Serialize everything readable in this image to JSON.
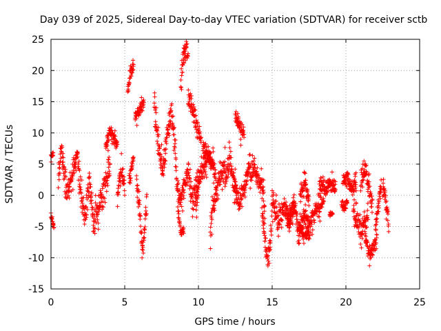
{
  "chart_data": {
    "type": "scatter",
    "title": "Day 039 of 2025, Sidereal Day-to-day VTEC variation (SDTVAR) for receiver sctb",
    "xlabel": "GPS time / hours",
    "ylabel": "SDTVAR / TECUs",
    "xlim": [
      0,
      25
    ],
    "ylim": [
      -15,
      25
    ],
    "x_ticks": [
      "0",
      "5",
      "10",
      "15",
      "20",
      "25"
    ],
    "y_ticks": [
      "-15",
      "-10",
      "-5",
      "0",
      "5",
      "10",
      "15",
      "20",
      "25"
    ],
    "grid": true,
    "marker": "+",
    "color": "#ff0000",
    "series": [
      {
        "name": "SDTVAR",
        "segments": [
          {
            "start": 0.0,
            "end": 0.15,
            "points": [
              [
                0.0,
                6.0
              ],
              [
                0.15,
                6.5
              ]
            ],
            "noise": 0.5
          },
          {
            "start": 0.0,
            "end": 0.2,
            "points": [
              [
                0.0,
                -3.5
              ],
              [
                0.2,
                -5.0
              ]
            ],
            "noise": 0.6
          },
          {
            "start": 0.5,
            "end": 4.0,
            "points": [
              [
                0.5,
                3.0
              ],
              [
                0.7,
                7.5
              ],
              [
                0.9,
                3.0
              ],
              [
                1.2,
                0.5
              ],
              [
                1.5,
                4.0
              ],
              [
                1.8,
                6.5
              ],
              [
                2.0,
                1.0
              ],
              [
                2.3,
                -3.0
              ],
              [
                2.6,
                2.0
              ],
              [
                2.9,
                -4.5
              ],
              [
                3.2,
                -2.0
              ],
              [
                3.5,
                0.0
              ],
              [
                3.8,
                3.0
              ],
              [
                4.0,
                5.0
              ]
            ],
            "noise": 2.2
          },
          {
            "start": 3.7,
            "end": 4.5,
            "points": [
              [
                3.7,
                7.5
              ],
              [
                4.0,
                10.5
              ],
              [
                4.3,
                9.0
              ],
              [
                4.5,
                8.0
              ]
            ],
            "noise": 0.9
          },
          {
            "start": 4.5,
            "end": 5.0,
            "points": [
              [
                4.5,
                0.0
              ],
              [
                4.75,
                4.0
              ],
              [
                5.0,
                1.5
              ]
            ],
            "noise": 1.5
          },
          {
            "start": 5.2,
            "end": 5.6,
            "points": [
              [
                5.2,
                16.5
              ],
              [
                5.4,
                20.0
              ],
              [
                5.6,
                21.0
              ]
            ],
            "noise": 1.0
          },
          {
            "start": 5.3,
            "end": 5.6,
            "points": [
              [
                5.3,
                2.0
              ],
              [
                5.6,
                6.0
              ]
            ],
            "noise": 1.2
          },
          {
            "start": 5.7,
            "end": 6.3,
            "points": [
              [
                5.7,
                12.5
              ],
              [
                6.0,
                13.5
              ],
              [
                6.3,
                15.0
              ]
            ],
            "noise": 0.9
          },
          {
            "start": 5.8,
            "end": 6.5,
            "points": [
              [
                5.8,
                2.0
              ],
              [
                6.0,
                -2.0
              ],
              [
                6.2,
                -9.5
              ],
              [
                6.4,
                -4.0
              ],
              [
                6.5,
                -1.0
              ]
            ],
            "noise": 1.5
          },
          {
            "start": 7.0,
            "end": 8.5,
            "points": [
              [
                7.0,
                15.0
              ],
              [
                7.3,
                8.0
              ],
              [
                7.6,
                4.0
              ],
              [
                7.9,
                10.0
              ],
              [
                8.2,
                13.0
              ],
              [
                8.5,
                5.0
              ]
            ],
            "noise": 2.2
          },
          {
            "start": 8.5,
            "end": 10.0,
            "points": [
              [
                8.5,
                2.0
              ],
              [
                8.8,
                -1.0
              ],
              [
                9.0,
                1.0
              ],
              [
                9.3,
                4.0
              ],
              [
                9.6,
                -1.0
              ],
              [
                10.0,
                2.0
              ]
            ],
            "noise": 2.0
          },
          {
            "start": 8.8,
            "end": 9.3,
            "points": [
              [
                8.8,
                18.0
              ],
              [
                9.0,
                22.0
              ],
              [
                9.2,
                24.0
              ],
              [
                9.3,
                21.0
              ]
            ],
            "noise": 1.8
          },
          {
            "start": 8.6,
            "end": 9.0,
            "points": [
              [
                8.6,
                -2.0
              ],
              [
                8.8,
                -6.0
              ],
              [
                9.0,
                -5.5
              ]
            ],
            "noise": 0.8
          },
          {
            "start": 9.3,
            "end": 10.2,
            "points": [
              [
                9.3,
                16.0
              ],
              [
                9.6,
                14.0
              ],
              [
                9.9,
                11.0
              ],
              [
                10.2,
                8.0
              ]
            ],
            "noise": 1.5
          },
          {
            "start": 9.8,
            "end": 11.2,
            "points": [
              [
                9.8,
                -2.0
              ],
              [
                10.2,
                4.0
              ],
              [
                10.6,
                6.0
              ],
              [
                11.0,
                5.0
              ],
              [
                11.2,
                2.0
              ]
            ],
            "noise": 1.8
          },
          {
            "start": 10.3,
            "end": 11.0,
            "points": [
              [
                10.3,
                8.0
              ],
              [
                10.6,
                6.5
              ],
              [
                11.0,
                5.0
              ]
            ],
            "noise": 1.2
          },
          {
            "start": 10.8,
            "end": 11.8,
            "points": [
              [
                10.8,
                -6.0
              ],
              [
                11.0,
                -2.0
              ],
              [
                11.4,
                2.0
              ],
              [
                11.8,
                5.0
              ]
            ],
            "noise": 2.0
          },
          {
            "start": 11.8,
            "end": 12.6,
            "points": [
              [
                11.8,
                2.0
              ],
              [
                12.1,
                6.0
              ],
              [
                12.3,
                4.0
              ],
              [
                12.6,
                1.0
              ]
            ],
            "noise": 1.8
          },
          {
            "start": 12.5,
            "end": 13.1,
            "points": [
              [
                12.5,
                13.0
              ],
              [
                12.8,
                11.0
              ],
              [
                13.1,
                10.0
              ]
            ],
            "noise": 1.2
          },
          {
            "start": 12.4,
            "end": 13.5,
            "points": [
              [
                12.4,
                1.0
              ],
              [
                12.8,
                -1.0
              ],
              [
                13.2,
                2.0
              ],
              [
                13.5,
                5.0
              ]
            ],
            "noise": 1.8
          },
          {
            "start": 13.5,
            "end": 14.5,
            "points": [
              [
                13.5,
                3.0
              ],
              [
                13.8,
                5.0
              ],
              [
                14.1,
                2.0
              ],
              [
                14.4,
                1.0
              ],
              [
                14.5,
                -3.0
              ]
            ],
            "noise": 2.0
          },
          {
            "start": 14.3,
            "end": 15.0,
            "points": [
              [
                14.3,
                -2.0
              ],
              [
                14.5,
                -7.0
              ],
              [
                14.7,
                -10.5
              ],
              [
                14.9,
                -6.0
              ],
              [
                15.0,
                -2.0
              ]
            ],
            "noise": 1.8
          },
          {
            "start": 15.0,
            "end": 16.5,
            "points": [
              [
                15.0,
                -1.0
              ],
              [
                15.4,
                -4.0
              ],
              [
                15.8,
                -2.0
              ],
              [
                16.2,
                -4.0
              ],
              [
                16.5,
                -2.0
              ]
            ],
            "noise": 1.8
          },
          {
            "start": 16.0,
            "end": 18.5,
            "points": [
              [
                16.0,
                -4.0
              ],
              [
                16.5,
                -1.0
              ],
              [
                16.8,
                -6.0
              ],
              [
                17.2,
                -3.0
              ],
              [
                17.6,
                -5.0
              ],
              [
                18.0,
                -2.0
              ],
              [
                18.5,
                -1.0
              ]
            ],
            "noise": 1.8
          },
          {
            "start": 16.8,
            "end": 17.5,
            "points": [
              [
                16.8,
                -5.0
              ],
              [
                17.2,
                -6.5
              ],
              [
                17.5,
                -6.0
              ]
            ],
            "noise": 0.8
          },
          {
            "start": 16.9,
            "end": 17.5,
            "points": [
              [
                16.9,
                0.0
              ],
              [
                17.2,
                2.0
              ],
              [
                17.5,
                -1.0
              ]
            ],
            "noise": 1.5
          },
          {
            "start": 18.2,
            "end": 19.3,
            "points": [
              [
                18.2,
                2.0
              ],
              [
                18.6,
                1.0
              ],
              [
                19.0,
                2.0
              ],
              [
                19.3,
                1.5
              ]
            ],
            "noise": 1.3
          },
          {
            "start": 18.9,
            "end": 19.1,
            "points": [
              [
                18.9,
                -3.0
              ],
              [
                19.1,
                -3.0
              ]
            ],
            "noise": 0.3
          },
          {
            "start": 19.8,
            "end": 20.7,
            "points": [
              [
                19.8,
                2.0
              ],
              [
                20.1,
                3.0
              ],
              [
                20.4,
                1.0
              ],
              [
                20.7,
                2.0
              ]
            ],
            "noise": 1.4
          },
          {
            "start": 19.7,
            "end": 20.1,
            "points": [
              [
                19.7,
                -1.5
              ],
              [
                19.9,
                -2.0
              ],
              [
                20.1,
                -1.0
              ]
            ],
            "noise": 0.8
          },
          {
            "start": 20.5,
            "end": 21.5,
            "points": [
              [
                20.5,
                -2.0
              ],
              [
                20.8,
                -4.0
              ],
              [
                21.0,
                -6.0
              ],
              [
                21.3,
                -5.0
              ],
              [
                21.5,
                -2.0
              ]
            ],
            "noise": 2.0
          },
          {
            "start": 21.0,
            "end": 21.8,
            "points": [
              [
                21.0,
                2.0
              ],
              [
                21.3,
                4.5
              ],
              [
                21.6,
                1.0
              ],
              [
                21.8,
                -2.0
              ]
            ],
            "noise": 1.8
          },
          {
            "start": 21.3,
            "end": 22.1,
            "points": [
              [
                21.3,
                -7.0
              ],
              [
                21.6,
                -9.5
              ],
              [
                21.9,
                -8.0
              ],
              [
                22.1,
                -7.0
              ]
            ],
            "noise": 1.2
          },
          {
            "start": 22.0,
            "end": 22.4,
            "points": [
              [
                22.0,
                -5.0
              ],
              [
                22.2,
                -2.0
              ],
              [
                22.4,
                2.0
              ]
            ],
            "noise": 1.5
          },
          {
            "start": 22.5,
            "end": 22.9,
            "points": [
              [
                22.5,
                2.0
              ],
              [
                22.7,
                -1.0
              ],
              [
                22.9,
                -4.5
              ]
            ],
            "noise": 2.0
          }
        ]
      }
    ]
  }
}
